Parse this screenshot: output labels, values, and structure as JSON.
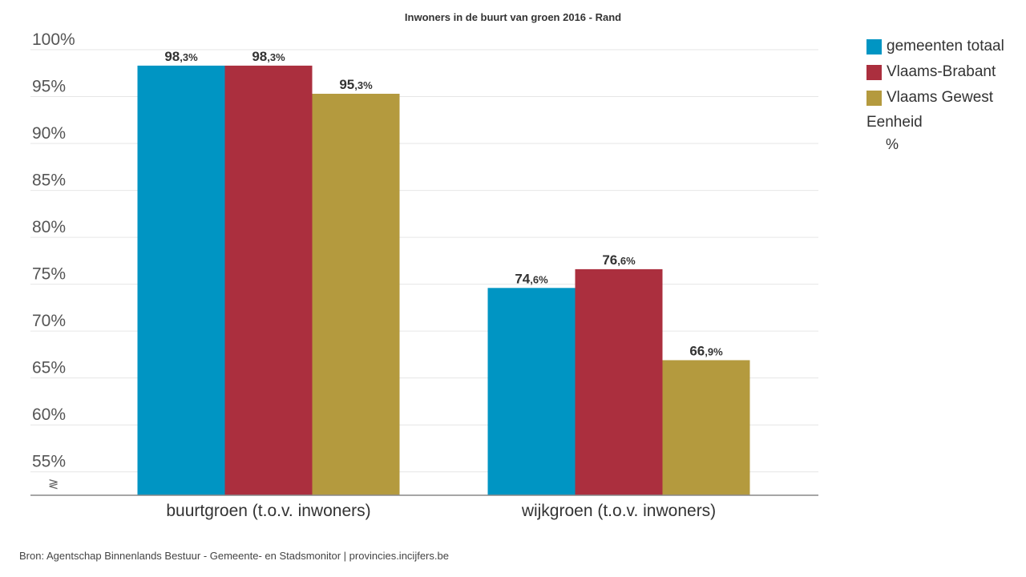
{
  "chart_data": {
    "type": "bar",
    "title": "Inwoners in de buurt van groen 2016 - Rand",
    "categories": [
      "buurtgroen (t.o.v. inwoners)",
      "wijkgroen (t.o.v. inwoners)"
    ],
    "series": [
      {
        "name": "gemeenten totaal",
        "color": "#0095c3",
        "values": [
          98.3,
          74.6
        ]
      },
      {
        "name": "Vlaams-Brabant",
        "color": "#ab2f3e",
        "values": [
          98.3,
          76.6
        ]
      },
      {
        "name": "Vlaams Gewest",
        "color": "#b49a3e",
        "values": [
          95.3,
          66.9
        ]
      }
    ],
    "data_labels": [
      [
        "98",
        ",3%",
        "74",
        ",6%"
      ],
      [
        "98",
        ",3%",
        "76",
        ",6%"
      ],
      [
        "95",
        ",3%",
        "66",
        ",9%"
      ]
    ],
    "ylim": [
      52.5,
      100
    ],
    "yticks": [
      "55%",
      "60%",
      "65%",
      "70%",
      "75%",
      "80%",
      "85%",
      "90%",
      "95%",
      "100%"
    ],
    "ytick_values": [
      55,
      60,
      65,
      70,
      75,
      80,
      85,
      90,
      95,
      100
    ],
    "axis_break_symbol": "≷",
    "grid": true,
    "legend_position": "right"
  },
  "legend": {
    "unit_title": "Eenheid",
    "unit_value": "%"
  },
  "source": "Bron: Agentschap Binnenlands Bestuur - Gemeente- en Stadsmonitor | provincies.incijfers.be"
}
